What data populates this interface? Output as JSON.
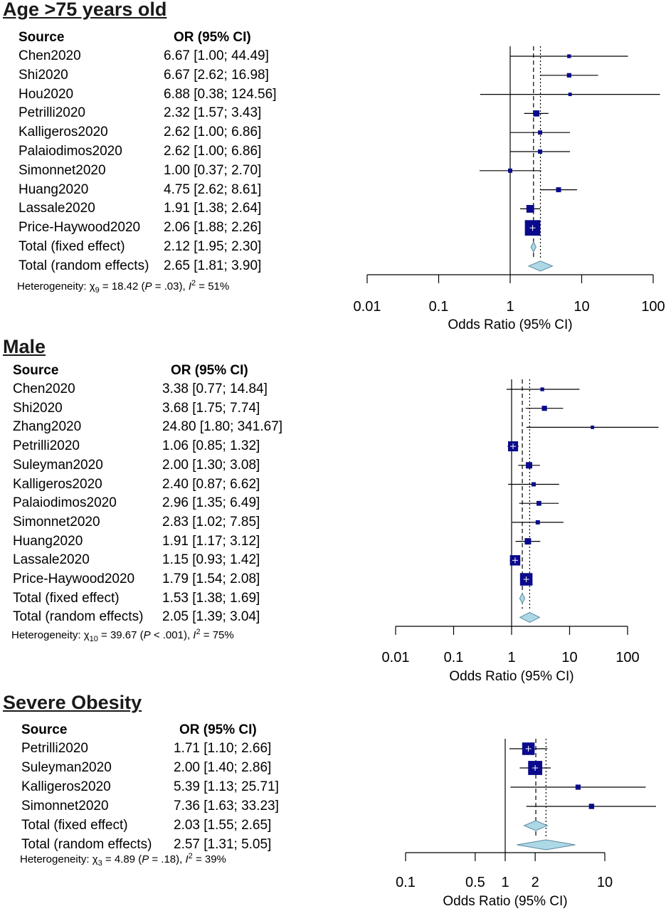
{
  "chart_data": [
    {
      "type": "forest",
      "title": "Age >75 years old",
      "column_headers": {
        "source": "Source",
        "estimate": "OR (95% CI)"
      },
      "xlabel": "Odds Ratio (95% CI)",
      "x_scale": "log",
      "xticks": [
        0.01,
        0.1,
        1,
        10,
        100
      ],
      "xtick_labels": [
        "0.01",
        "0.1",
        "1",
        "10",
        "100"
      ],
      "rows": [
        {
          "source": "Chen2020",
          "label": "6.67 [1.00;  44.49]",
          "or": 6.67,
          "lo": 1.0,
          "hi": 44.49,
          "weight": 0.3
        },
        {
          "source": "Shi2020",
          "label": "6.67 [2.62;  16.98]",
          "or": 6.67,
          "lo": 2.62,
          "hi": 16.98,
          "weight": 0.6
        },
        {
          "source": "Hou2020",
          "label": "6.88 [0.38; 124.56]",
          "or": 6.88,
          "lo": 0.38,
          "hi": 124.56,
          "weight": 0.2
        },
        {
          "source": "Petrilli2020",
          "label": "2.32 [1.57;   3.43]",
          "or": 2.32,
          "lo": 1.57,
          "hi": 3.43,
          "weight": 1.8
        },
        {
          "source": "Kalligeros2020",
          "label": "2.62 [1.00;   6.86]",
          "or": 2.62,
          "lo": 1.0,
          "hi": 6.86,
          "weight": 0.5
        },
        {
          "source": "Palaiodimos2020",
          "label": "2.62 [1.00;   6.86]",
          "or": 2.62,
          "lo": 1.0,
          "hi": 6.86,
          "weight": 0.5
        },
        {
          "source": "Simonnet2020",
          "label": "1.00 [0.37;   2.70]",
          "or": 1.0,
          "lo": 0.37,
          "hi": 2.7,
          "weight": 0.5
        },
        {
          "source": "Huang2020",
          "label": "4.75 [2.62;   8.61]",
          "or": 4.75,
          "lo": 2.62,
          "hi": 8.61,
          "weight": 0.9
        },
        {
          "source": "Lassale2020",
          "label": "1.91 [1.38;   2.64]",
          "or": 1.91,
          "lo": 1.38,
          "hi": 2.64,
          "weight": 3.5
        },
        {
          "source": "Price-Haywood2020",
          "label": "2.06 [1.88;   2.26]",
          "or": 2.06,
          "lo": 1.88,
          "hi": 2.26,
          "weight": 20
        }
      ],
      "fixed": {
        "source": "Total (fixed effect)",
        "label": "2.12 [1.95;   2.30]",
        "or": 2.12,
        "lo": 1.95,
        "hi": 2.3
      },
      "random": {
        "source": "Total (random effects)",
        "label": "2.65 [1.81;   3.90]",
        "or": 2.65,
        "lo": 1.81,
        "hi": 3.9
      },
      "heterogeneity": {
        "prefix": "Heterogeneity: χ",
        "df": "9",
        "chi": " = 18.42 (",
        "p_symbol": "P",
        "p_value": " = .03), ",
        "i_symbol": "I",
        "i_value": " = 51%"
      }
    },
    {
      "type": "forest",
      "title": "Male",
      "column_headers": {
        "source": "Source",
        "estimate": "OR (95% CI)"
      },
      "xlabel": "Odds Ratio (95% CI)",
      "x_scale": "log",
      "xticks": [
        0.01,
        0.1,
        1,
        10,
        100
      ],
      "xtick_labels": [
        "0.01",
        "0.1",
        "1",
        "10",
        "100"
      ],
      "rows": [
        {
          "source": "Chen2020",
          "label": "3.38 [0.77;  14.84]",
          "or": 3.38,
          "lo": 0.77,
          "hi": 14.84,
          "weight": 0.3
        },
        {
          "source": "Shi2020",
          "label": "3.68 [1.75;   7.74]",
          "or": 3.68,
          "lo": 1.75,
          "hi": 7.74,
          "weight": 1.0
        },
        {
          "source": "Zhang2020",
          "label": "24.80 [1.80; 341.67]",
          "or": 24.8,
          "lo": 1.8,
          "hi": 341.67,
          "weight": 0.2
        },
        {
          "source": "Petrilli2020",
          "label": "1.06 [0.85;   1.32]",
          "or": 1.06,
          "lo": 0.85,
          "hi": 1.32,
          "weight": 7.0
        },
        {
          "source": "Suleyman2020",
          "label": "2.00 [1.30;   3.08]",
          "or": 2.0,
          "lo": 1.3,
          "hi": 3.08,
          "weight": 2.0
        },
        {
          "source": "Kalligeros2020",
          "label": "2.40 [0.87;   6.62]",
          "or": 2.4,
          "lo": 0.87,
          "hi": 6.62,
          "weight": 0.5
        },
        {
          "source": "Palaiodimos2020",
          "label": "2.96 [1.35;   6.49]",
          "or": 2.96,
          "lo": 1.35,
          "hi": 6.49,
          "weight": 0.8
        },
        {
          "source": "Simonnet2020",
          "label": "2.83 [1.02;   7.85]",
          "or": 2.83,
          "lo": 1.02,
          "hi": 7.85,
          "weight": 0.5
        },
        {
          "source": "Huang2020",
          "label": "1.91 [1.17;   3.12]",
          "or": 1.91,
          "lo": 1.17,
          "hi": 3.12,
          "weight": 2.0
        },
        {
          "source": "Lassale2020",
          "label": "1.15 [0.93;   1.42]",
          "or": 1.15,
          "lo": 0.93,
          "hi": 1.42,
          "weight": 7.5
        },
        {
          "source": "Price-Haywood2020",
          "label": "1.79 [1.54;   2.08]",
          "or": 1.79,
          "lo": 1.54,
          "hi": 2.08,
          "weight": 12
        }
      ],
      "fixed": {
        "source": "Total (fixed effect)",
        "label": "1.53 [1.38;   1.69]",
        "or": 1.53,
        "lo": 1.38,
        "hi": 1.69
      },
      "random": {
        "source": "Total (random effects)",
        "label": "2.05 [1.39;   3.04]",
        "or": 2.05,
        "lo": 1.39,
        "hi": 3.04
      },
      "heterogeneity": {
        "prefix": "Heterogeneity: χ",
        "df": "10",
        "chi": " = 39.67 (",
        "p_symbol": "P",
        "p_value": " < .001), ",
        "i_symbol": "I",
        "i_value": " = 75%"
      }
    },
    {
      "type": "forest",
      "title": "Severe Obesity",
      "column_headers": {
        "source": "Source",
        "estimate": "OR (95% CI)"
      },
      "xlabel": "Odds Ratio (95% CI)",
      "x_scale": "log",
      "xticks": [
        0.1,
        0.5,
        1,
        2,
        10
      ],
      "xtick_labels": [
        "0.1",
        "0.5",
        "1",
        "2",
        "10"
      ],
      "rows": [
        {
          "source": "Petrilli2020",
          "label": "1.71 [1.10;   2.66]",
          "or": 1.71,
          "lo": 1.1,
          "hi": 2.66,
          "weight": 12
        },
        {
          "source": "Suleyman2020",
          "label": "2.00 [1.40;   2.86]",
          "or": 2.0,
          "lo": 1.4,
          "hi": 2.86,
          "weight": 16
        },
        {
          "source": "Kalligeros2020",
          "label": "5.39 [1.13;  25.71]",
          "or": 5.39,
          "lo": 1.13,
          "hi": 25.71,
          "weight": 1.0
        },
        {
          "source": "Simonnet2020",
          "label": "7.36 [1.63;  33.23]",
          "or": 7.36,
          "lo": 1.63,
          "hi": 33.23,
          "weight": 1.1
        }
      ],
      "fixed": {
        "source": "Total (fixed effect)",
        "label": "2.03 [1.55;   2.65]",
        "or": 2.03,
        "lo": 1.55,
        "hi": 2.65
      },
      "random": {
        "source": "Total (random effects)",
        "label": "2.57 [1.31;   5.05]",
        "or": 2.57,
        "lo": 1.31,
        "hi": 5.05
      },
      "heterogeneity": {
        "prefix": "Heterogeneity: χ",
        "df": "3",
        "chi": " = 4.89 (",
        "p_symbol": "P",
        "p_value": " = .18), ",
        "i_symbol": "I",
        "i_value": " = 39%"
      }
    }
  ],
  "colors": {
    "study_square": "#0a0a8c",
    "diamond_fill": "#add8e6",
    "diamond_stroke": "#5a8aa0",
    "line": "#000000",
    "title": "#1a1a1a"
  }
}
